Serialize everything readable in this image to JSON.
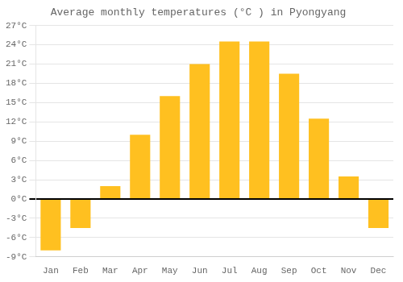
{
  "chart_data": {
    "type": "bar",
    "title": "Average monthly temperatures (°C ) in Pyongyang",
    "categories": [
      "Jan",
      "Feb",
      "Mar",
      "Apr",
      "May",
      "Jun",
      "Jul",
      "Aug",
      "Sep",
      "Oct",
      "Nov",
      "Dec"
    ],
    "values": [
      -8,
      -4.5,
      2,
      10,
      16,
      21,
      24.5,
      24.5,
      19.5,
      12.5,
      3.5,
      -4.5
    ],
    "color": "#FFC020",
    "ylim": [
      -9,
      27
    ],
    "yticks": [
      {
        "value": -9,
        "label": "-9°C"
      },
      {
        "value": -6,
        "label": "-6°C"
      },
      {
        "value": -3,
        "label": "-3°C"
      },
      {
        "value": 0,
        "label": "0°C"
      },
      {
        "value": 3,
        "label": "3°C"
      },
      {
        "value": 6,
        "label": "6°C"
      },
      {
        "value": 9,
        "label": "9°C"
      },
      {
        "value": 12,
        "label": "12°C"
      },
      {
        "value": 15,
        "label": "15°C"
      },
      {
        "value": 18,
        "label": "18°C"
      },
      {
        "value": 21,
        "label": "21°C"
      },
      {
        "value": 24,
        "label": "24°C"
      },
      {
        "value": 27,
        "label": "27°C"
      }
    ],
    "grid": true
  }
}
